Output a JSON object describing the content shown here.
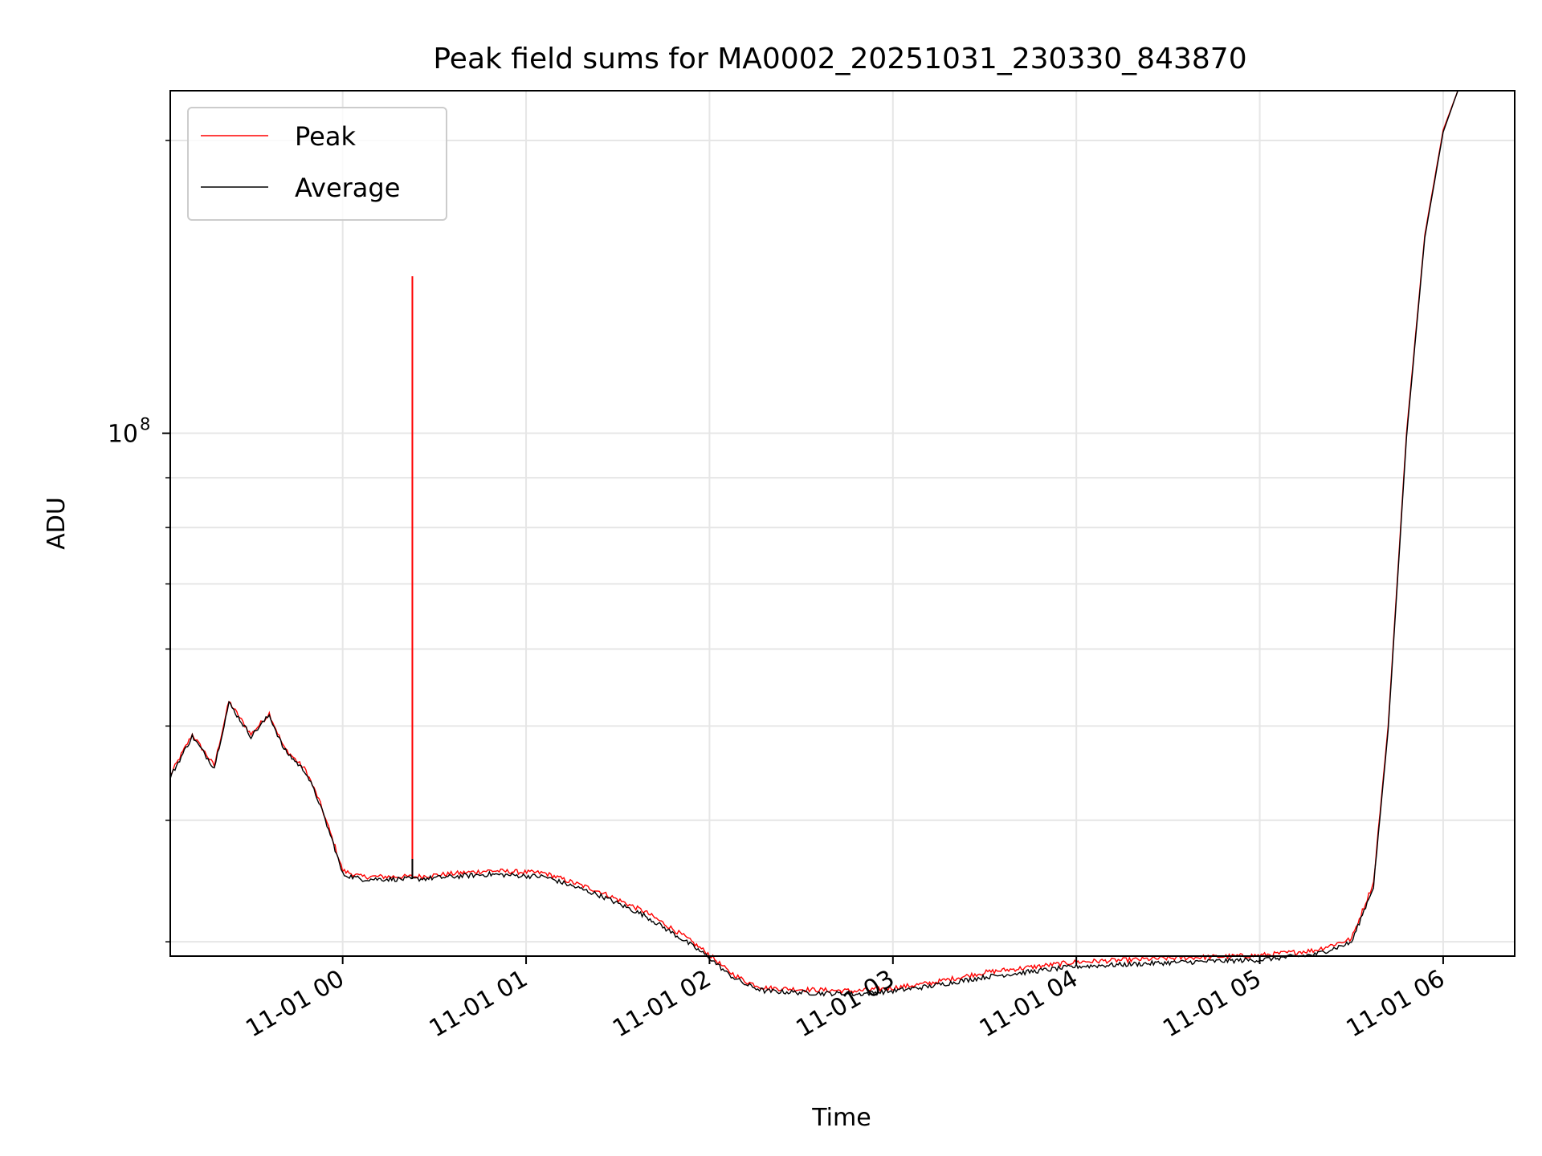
{
  "chart_data": {
    "type": "line",
    "title": "Peak field sums for MA0002_20251031_230330_843870",
    "xlabel": "Time",
    "ylabel": "ADU",
    "y_scale": "log",
    "x_units": "hours relative to 11-01 00:00",
    "xlim": [
      -0.94,
      6.39
    ],
    "ylim": [
      29000000,
      225000000
    ],
    "grid": true,
    "legend_position": "top-left",
    "x_ticks": [
      {
        "value": 0,
        "label": "11-01 00"
      },
      {
        "value": 1,
        "label": "11-01 01"
      },
      {
        "value": 2,
        "label": "11-01 02"
      },
      {
        "value": 3,
        "label": "11-01 03"
      },
      {
        "value": 4,
        "label": "11-01 04"
      },
      {
        "value": 5,
        "label": "11-01 05"
      },
      {
        "value": 6,
        "label": "11-01 06"
      }
    ],
    "y_major_ticks": [
      {
        "value": 100000000,
        "base": "10",
        "exponent": "8"
      }
    ],
    "y_minor_ticks": [
      30000000,
      40000000,
      50000000,
      60000000,
      70000000,
      80000000,
      90000000,
      200000000
    ],
    "series": [
      {
        "name": "Peak",
        "color": "#ff0000",
        "x": [
          -0.94,
          -0.82,
          -0.7,
          -0.62,
          -0.5,
          -0.4,
          -0.32,
          -0.2,
          -0.13,
          -0.05,
          0.0,
          0.1,
          0.4,
          0.8,
          1.1,
          1.4,
          1.65,
          1.85,
          2.0,
          2.1,
          2.2,
          2.3,
          2.5,
          2.8,
          3.0,
          3.2,
          3.5,
          4.0,
          4.5,
          5.0,
          5.3,
          5.5,
          5.62,
          5.7,
          5.8,
          5.9,
          6.0,
          6.08,
          6.12
        ],
        "values": [
          44500000,
          49000000,
          45500000,
          53000000,
          49000000,
          51500000,
          47500000,
          45000000,
          42000000,
          38000000,
          35500000,
          35000000,
          35000000,
          35500000,
          35300000,
          33800000,
          32200000,
          30500000,
          29100000,
          28000000,
          27300000,
          26900000,
          26800000,
          26700000,
          26900000,
          27200000,
          27900000,
          28600000,
          28850000,
          29050000,
          29400000,
          30200000,
          34500000,
          50000000,
          100000000,
          160000000,
          205000000,
          225000000,
          225000000
        ]
      },
      {
        "name": "Average",
        "color": "#000000",
        "x": [
          -0.94,
          -0.82,
          -0.7,
          -0.62,
          -0.5,
          -0.4,
          -0.32,
          -0.2,
          -0.13,
          -0.05,
          0.0,
          0.1,
          0.4,
          0.8,
          1.1,
          1.4,
          1.65,
          1.85,
          2.0,
          2.1,
          2.2,
          2.3,
          2.5,
          2.8,
          3.0,
          3.2,
          3.5,
          4.0,
          4.5,
          5.0,
          5.3,
          5.5,
          5.62,
          5.7,
          5.8,
          5.9,
          6.0,
          6.08,
          6.12
        ],
        "values": [
          44300000,
          48800000,
          45300000,
          52800000,
          48800000,
          51300000,
          47300000,
          44800000,
          41800000,
          37800000,
          35200000,
          34800000,
          34800000,
          35200000,
          35000000,
          33500000,
          31900000,
          30200000,
          28900000,
          27800000,
          27100000,
          26700000,
          26600000,
          26500000,
          26700000,
          27000000,
          27600000,
          28300000,
          28550000,
          28750000,
          29100000,
          29950000,
          34200000,
          49500000,
          99000000,
          159000000,
          204000000,
          225000000,
          225000000
        ]
      }
    ],
    "annotations": [
      {
        "type": "spike",
        "series": "Peak",
        "x": 0.38,
        "baseline": 35000000,
        "top": 145000000
      },
      {
        "type": "spike",
        "series": "Average",
        "x": 0.38,
        "baseline": 34800000,
        "top": 36500000
      }
    ]
  }
}
